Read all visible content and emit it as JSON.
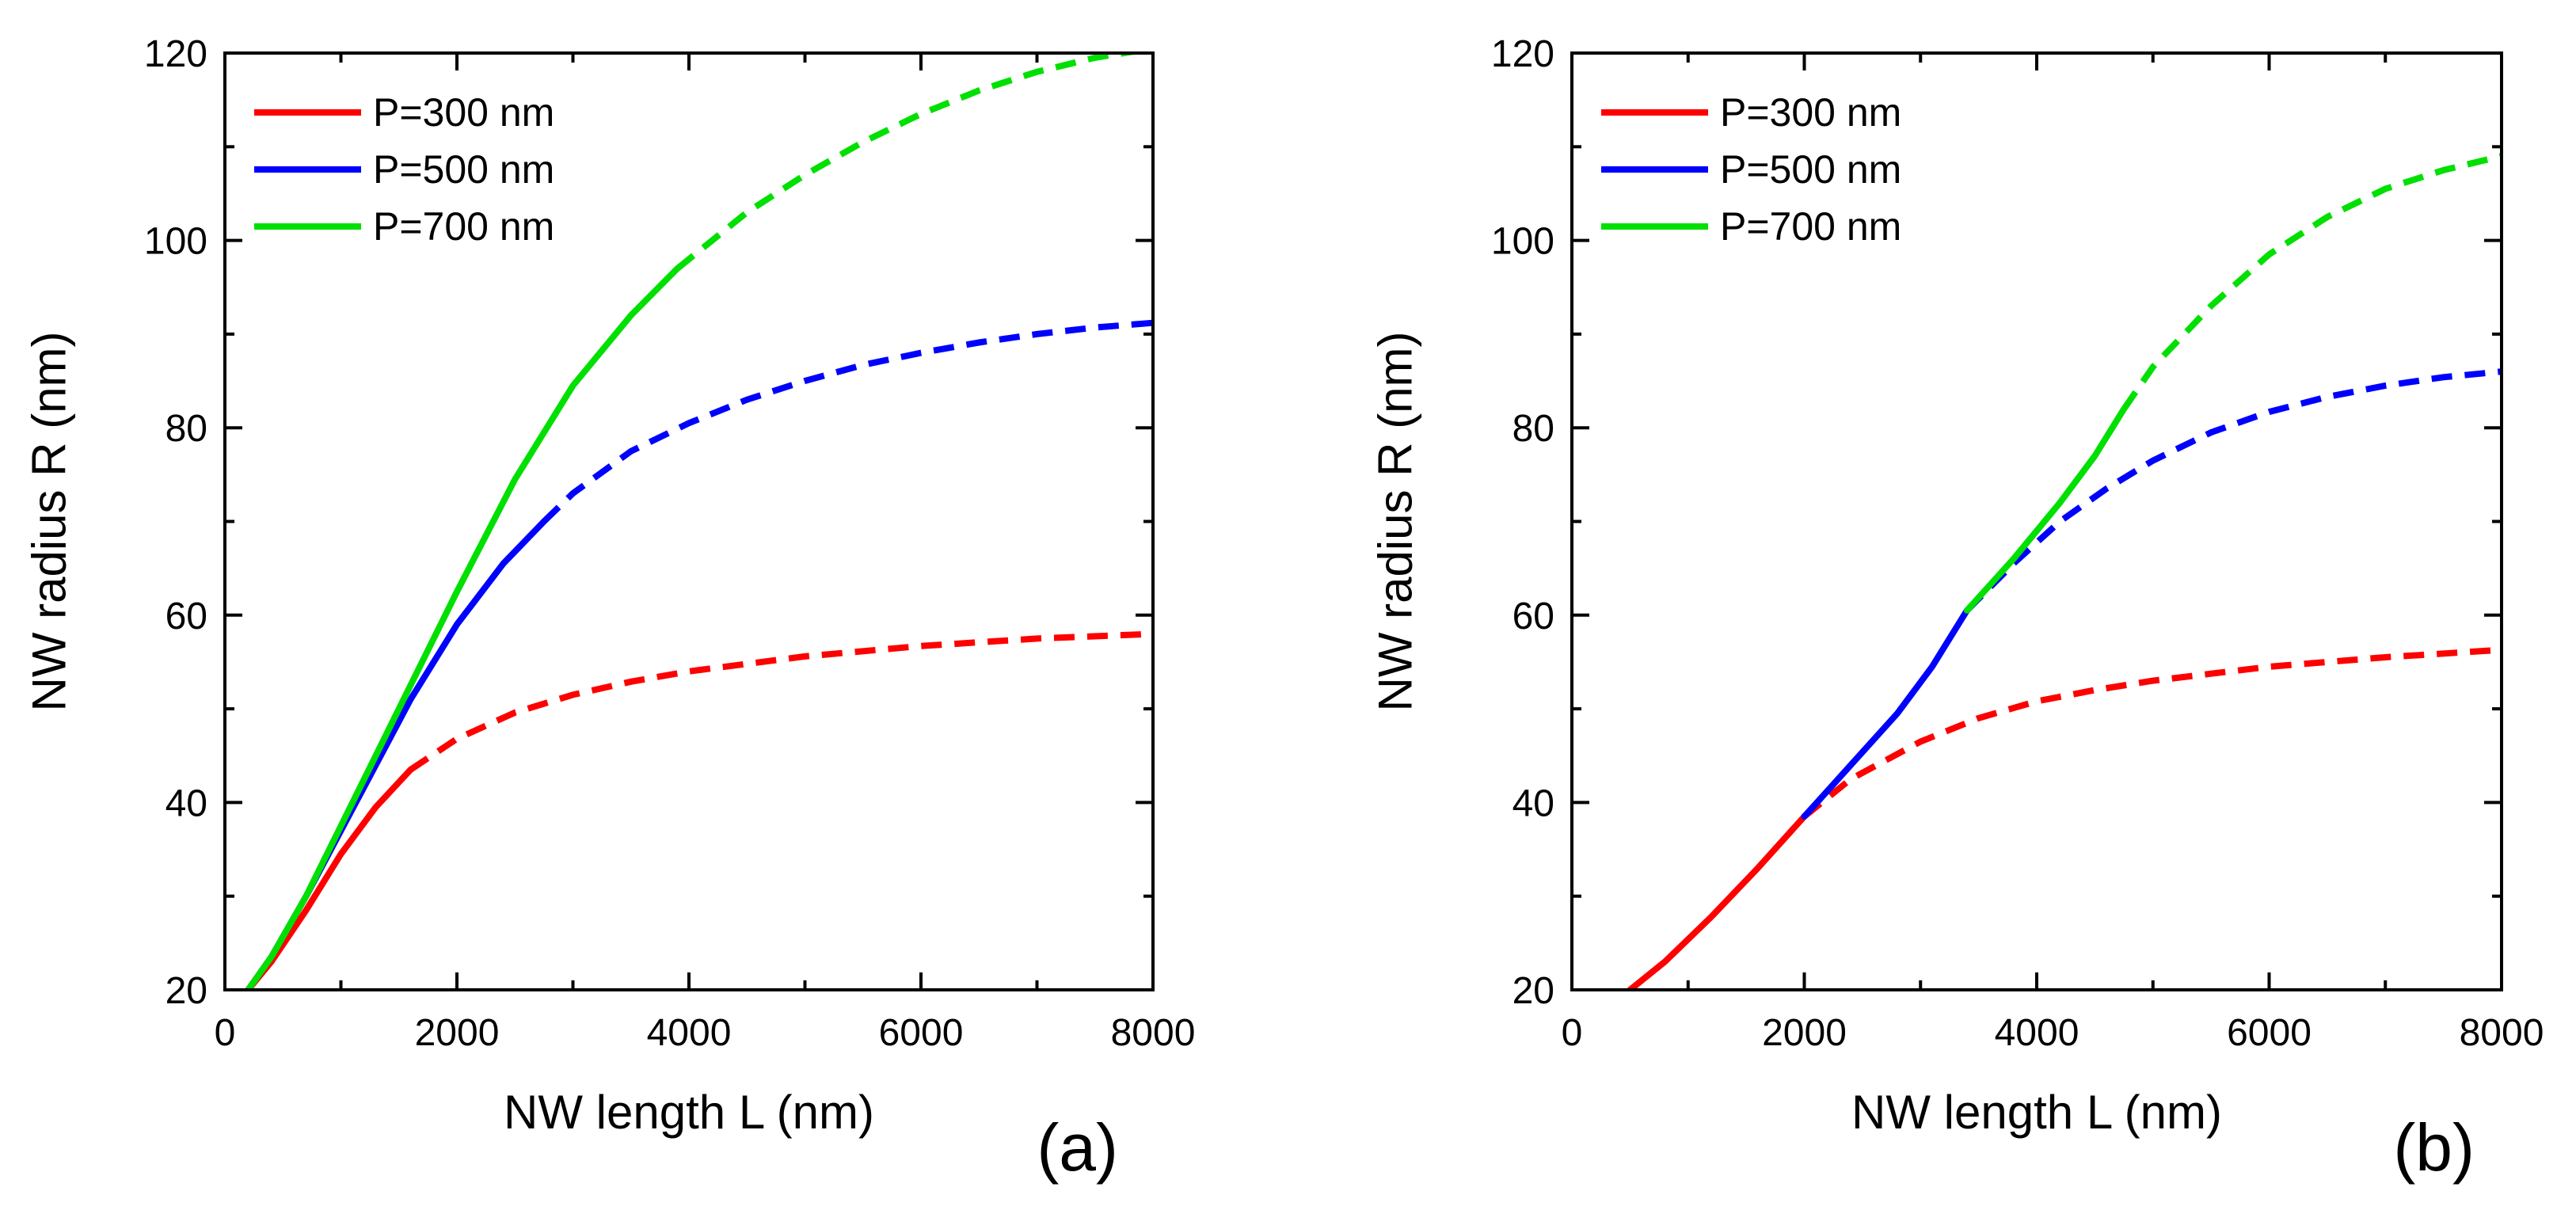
{
  "colors": {
    "p300": "#ff0000",
    "p500": "#0000ff",
    "p700": "#00e000",
    "axis": "#000000"
  },
  "chart_data": [
    {
      "type": "line",
      "panel_label": "(a)",
      "xlabel": "NW length L (nm)",
      "ylabel": "NW radius R (nm)",
      "xlim": [
        0,
        8000
      ],
      "ylim": [
        20,
        120
      ],
      "xticks": [
        0,
        2000,
        4000,
        6000,
        8000
      ],
      "yticks": [
        20,
        40,
        60,
        80,
        100,
        120
      ],
      "legend_position": "top-left",
      "series": [
        {
          "name": "P=300 nm",
          "color_key": "p300",
          "solid": [
            [
              200,
              20
            ],
            [
              400,
              23
            ],
            [
              700,
              28.5
            ],
            [
              1000,
              34.5
            ],
            [
              1300,
              39.5
            ],
            [
              1600,
              43.5
            ]
          ],
          "dashed": [
            [
              1600,
              43.5
            ],
            [
              2000,
              46.8
            ],
            [
              2500,
              49.6
            ],
            [
              3000,
              51.5
            ],
            [
              3500,
              52.9
            ],
            [
              4000,
              54
            ],
            [
              5000,
              55.6
            ],
            [
              6000,
              56.7
            ],
            [
              7000,
              57.5
            ],
            [
              8000,
              58
            ]
          ]
        },
        {
          "name": "P=500 nm",
          "color_key": "p500",
          "solid": [
            [
              200,
              20
            ],
            [
              400,
              23.5
            ],
            [
              700,
              30
            ],
            [
              1000,
              37
            ],
            [
              1300,
              44
            ],
            [
              1600,
              51
            ],
            [
              2000,
              59
            ],
            [
              2400,
              65.5
            ],
            [
              2750,
              70
            ]
          ],
          "dashed": [
            [
              2750,
              70
            ],
            [
              3000,
              73
            ],
            [
              3500,
              77.5
            ],
            [
              4000,
              80.5
            ],
            [
              4500,
              83
            ],
            [
              5000,
              85
            ],
            [
              5500,
              86.7
            ],
            [
              6000,
              88
            ],
            [
              6500,
              89.1
            ],
            [
              7000,
              90
            ],
            [
              7500,
              90.7
            ],
            [
              8000,
              91.2
            ]
          ]
        },
        {
          "name": "P=700 nm",
          "color_key": "p700",
          "solid": [
            [
              200,
              20
            ],
            [
              400,
              23.5
            ],
            [
              700,
              30
            ],
            [
              1000,
              37.5
            ],
            [
              1300,
              45
            ],
            [
              1600,
              52.5
            ],
            [
              2000,
              62.5
            ],
            [
              2500,
              74.5
            ],
            [
              3000,
              84.5
            ],
            [
              3500,
              92
            ],
            [
              3900,
              97
            ]
          ],
          "dashed": [
            [
              3900,
              97
            ],
            [
              4500,
              103
            ],
            [
              5000,
              107
            ],
            [
              5500,
              110.5
            ],
            [
              6000,
              113.5
            ],
            [
              6500,
              116
            ],
            [
              7000,
              118
            ],
            [
              7500,
              119.5
            ],
            [
              8000,
              120.5
            ]
          ]
        }
      ]
    },
    {
      "type": "line",
      "panel_label": "(b)",
      "xlabel": "NW length L (nm)",
      "ylabel": "NW radius R (nm)",
      "xlim": [
        0,
        8000
      ],
      "ylim": [
        20,
        120
      ],
      "xticks": [
        0,
        2000,
        4000,
        6000,
        8000
      ],
      "yticks": [
        20,
        40,
        60,
        80,
        100,
        120
      ],
      "legend_position": "top-left",
      "series": [
        {
          "name": "P=300 nm",
          "color_key": "p300",
          "solid": [
            [
              500,
              20
            ],
            [
              800,
              23
            ],
            [
              1200,
              27.8
            ],
            [
              1600,
              33
            ],
            [
              2000,
              38.5
            ]
          ],
          "dashed": [
            [
              2000,
              38.5
            ],
            [
              2400,
              42.5
            ],
            [
              3000,
              46.5
            ],
            [
              3500,
              49
            ],
            [
              4000,
              50.8
            ],
            [
              4500,
              52
            ],
            [
              5000,
              53
            ],
            [
              6000,
              54.5
            ],
            [
              7000,
              55.5
            ],
            [
              8000,
              56.3
            ]
          ]
        },
        {
          "name": "P=500 nm",
          "color_key": "p500",
          "solid": [
            [
              2000,
              38.5
            ],
            [
              2400,
              44
            ],
            [
              2800,
              49.5
            ],
            [
              3100,
              54.5
            ],
            [
              3400,
              60.5
            ]
          ],
          "dashed": [
            [
              3400,
              60.5
            ],
            [
              3800,
              65.5
            ],
            [
              4200,
              70
            ],
            [
              4600,
              73.5
            ],
            [
              5000,
              76.5
            ],
            [
              5500,
              79.5
            ],
            [
              6000,
              81.7
            ],
            [
              6500,
              83.3
            ],
            [
              7000,
              84.5
            ],
            [
              7500,
              85.4
            ],
            [
              8000,
              86
            ]
          ]
        },
        {
          "name": "P=700 nm",
          "color_key": "p700",
          "solid": [
            [
              3400,
              60.5
            ],
            [
              3800,
              66
            ],
            [
              4200,
              72
            ],
            [
              4500,
              77
            ],
            [
              4750,
              82
            ]
          ],
          "dashed": [
            [
              4750,
              82
            ],
            [
              5000,
              86.5
            ],
            [
              5500,
              93
            ],
            [
              6000,
              98.5
            ],
            [
              6500,
              102.5
            ],
            [
              7000,
              105.5
            ],
            [
              7500,
              107.5
            ],
            [
              8000,
              109
            ]
          ]
        }
      ]
    }
  ]
}
